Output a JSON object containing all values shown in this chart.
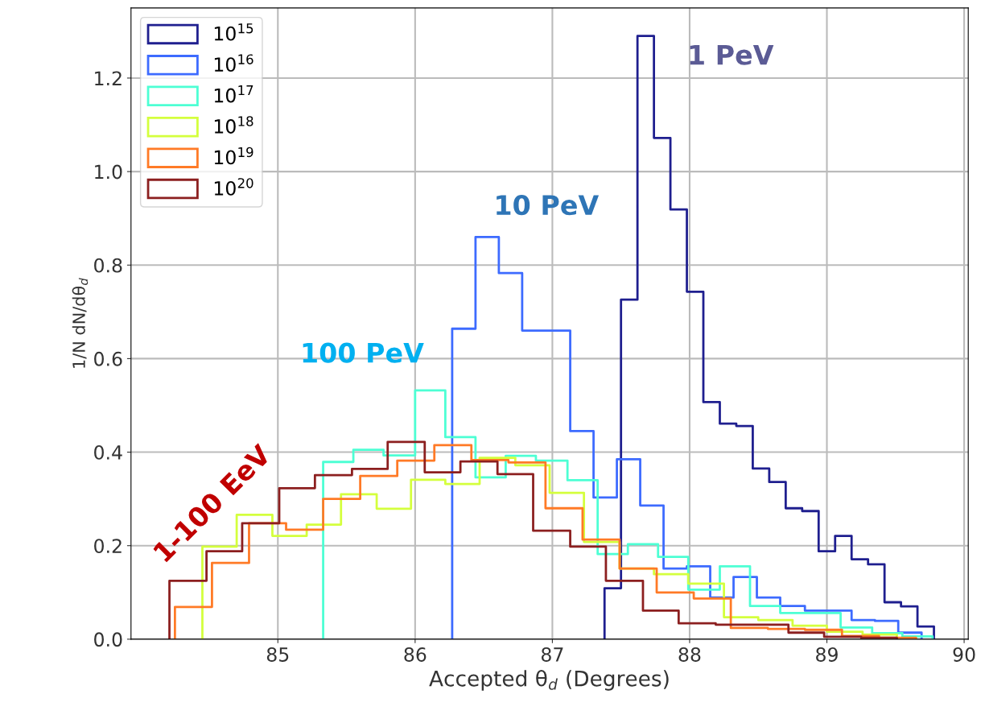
{
  "chart_data": {
    "type": "step",
    "xlabel": "Accepted θ$_{d}$ (Degrees)",
    "ylabel": "1/N dN/dθ$_{d}$",
    "xlim": [
      83.93,
      90.03
    ],
    "ylim": [
      0,
      1.35
    ],
    "xticks": [
      85,
      86,
      87,
      88,
      89,
      90
    ],
    "yticks": [
      {
        "value": 0,
        "label": "0.0"
      },
      {
        "value": 0.2,
        "label": "0.2"
      },
      {
        "value": 0.4,
        "label": "0.4"
      },
      {
        "value": 0.6,
        "label": "0.6"
      },
      {
        "value": 0.8,
        "label": "0.8"
      },
      {
        "value": 1.0,
        "label": "1.0"
      },
      {
        "value": 1.2,
        "label": "1.2"
      }
    ],
    "grid": true,
    "legend": "top left",
    "marker": "none",
    "line_style": "solid",
    "series": [
      {
        "name": "10$^{15}$",
        "color": "#1f1f8f",
        "x": [
          87.38,
          87.38,
          87.5,
          87.62,
          87.74,
          87.86,
          87.98,
          88.1,
          88.22,
          88.34,
          88.46,
          88.58,
          88.7,
          88.82,
          88.94,
          89.06,
          89.18,
          89.3,
          89.42,
          89.54,
          89.66,
          89.78
        ],
        "values": [
          0,
          0.109,
          0.726,
          1.29,
          1.072,
          0.919,
          0.743,
          0.507,
          0.461,
          0.456,
          0.365,
          0.336,
          0.28,
          0.274,
          0.188,
          0.221,
          0.171,
          0.16,
          0.079,
          0.07,
          0.027,
          0
        ]
      },
      {
        "name": "10$^{16}$",
        "color": "#3d6bff",
        "x": [
          86.27,
          86.27,
          86.44,
          86.61,
          86.78,
          86.95,
          87.13,
          87.3,
          87.47,
          87.64,
          87.81,
          87.98,
          88.15,
          88.32,
          88.49,
          88.66,
          88.84,
          89.01,
          89.18,
          89.35,
          89.52,
          89.69
        ],
        "values": [
          0,
          0.664,
          0.86,
          0.783,
          0.66,
          0.66,
          0.445,
          0.303,
          0.385,
          0.286,
          0.151,
          0.156,
          0.089,
          0.133,
          0.089,
          0.071,
          0.061,
          0.061,
          0.041,
          0.039,
          0.014,
          0
        ]
      },
      {
        "name": "10$^{17}$",
        "color": "#4dffd4",
        "x": [
          85.33,
          85.33,
          85.55,
          85.77,
          86.0,
          86.22,
          86.44,
          86.66,
          86.88,
          87.11,
          87.33,
          87.55,
          87.77,
          87.99,
          88.22,
          88.44,
          88.66,
          88.88,
          89.1,
          89.33,
          89.55,
          89.77
        ],
        "values": [
          0,
          0.379,
          0.405,
          0.393,
          0.532,
          0.432,
          0.346,
          0.392,
          0.382,
          0.34,
          0.182,
          0.203,
          0.176,
          0.106,
          0.156,
          0.071,
          0.056,
          0.056,
          0.025,
          0.013,
          0.006,
          0
        ]
      },
      {
        "name": "10$^{18}$",
        "color": "#d4ff3d",
        "x": [
          84.45,
          84.45,
          84.7,
          84.96,
          85.21,
          85.46,
          85.72,
          85.97,
          86.22,
          86.47,
          86.73,
          86.98,
          87.23,
          87.49,
          87.74,
          87.99,
          88.25,
          88.5,
          88.75,
          89.0,
          89.26,
          89.51
        ],
        "values": [
          0,
          0.198,
          0.266,
          0.221,
          0.245,
          0.31,
          0.279,
          0.341,
          0.332,
          0.388,
          0.372,
          0.313,
          0.208,
          0.151,
          0.139,
          0.119,
          0.047,
          0.041,
          0.029,
          0.016,
          0.01,
          0
        ]
      },
      {
        "name": "10$^{19}$",
        "color": "#ff7a26",
        "x": [
          84.25,
          84.25,
          84.52,
          84.79,
          85.06,
          85.33,
          85.6,
          85.87,
          86.14,
          86.41,
          86.68,
          86.95,
          87.22,
          87.49,
          87.76,
          88.03,
          88.3,
          88.57,
          88.84,
          89.11,
          89.38,
          89.65
        ],
        "values": [
          0,
          0.069,
          0.163,
          0.248,
          0.234,
          0.3,
          0.349,
          0.382,
          0.415,
          0.383,
          0.378,
          0.28,
          0.213,
          0.151,
          0.1,
          0.087,
          0.024,
          0.022,
          0.02,
          0.007,
          0.003,
          0
        ]
      },
      {
        "name": "10$^{20}$",
        "color": "#8c1f1f",
        "x": [
          84.21,
          84.21,
          84.48,
          84.74,
          85.01,
          85.27,
          85.54,
          85.8,
          86.07,
          86.33,
          86.6,
          86.86,
          87.13,
          87.39,
          87.66,
          87.92,
          88.19,
          88.45,
          88.72,
          88.98,
          89.25,
          89.51
        ],
        "values": [
          0,
          0.125,
          0.188,
          0.248,
          0.323,
          0.351,
          0.364,
          0.422,
          0.357,
          0.38,
          0.353,
          0.232,
          0.198,
          0.125,
          0.061,
          0.034,
          0.031,
          0.031,
          0.014,
          0.005,
          0.003,
          0
        ]
      }
    ],
    "annotations": [
      "1 PeV",
      "10 PeV",
      "100 PeV",
      "1-100 EeV"
    ]
  }
}
